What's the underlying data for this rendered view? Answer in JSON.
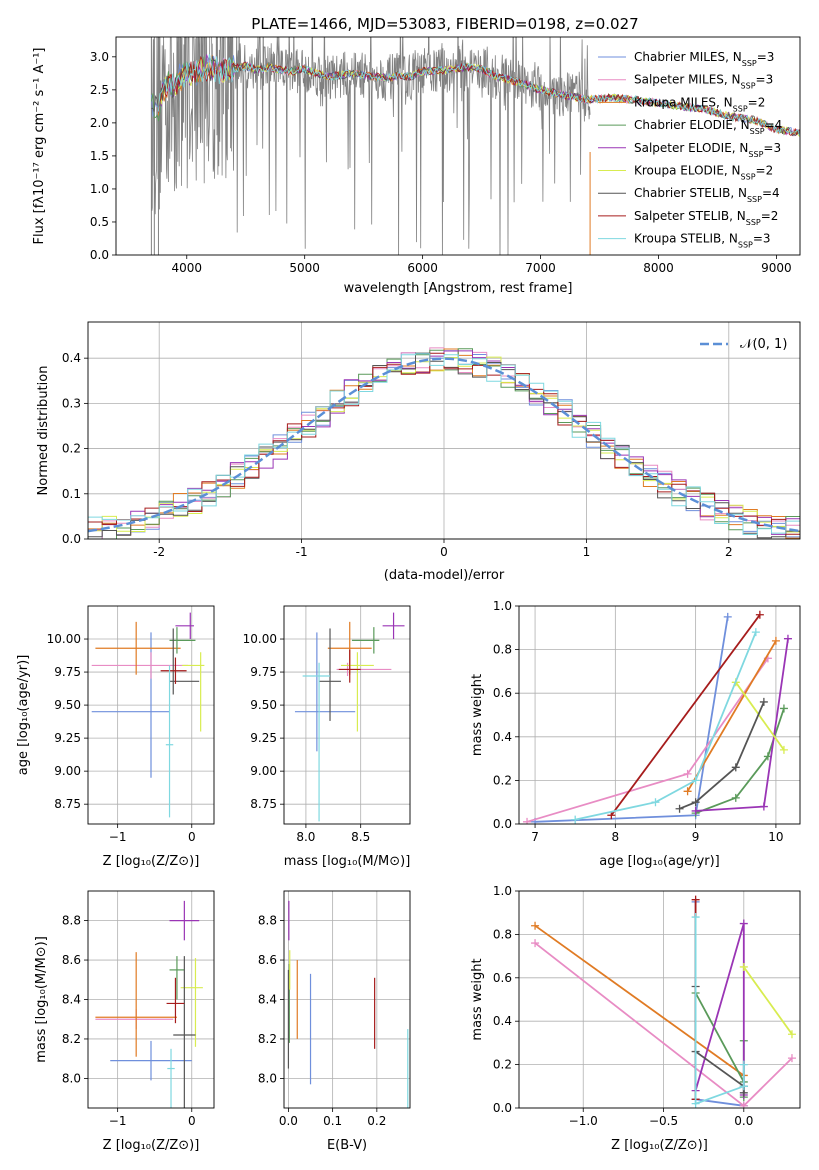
{
  "figure_title": "PLATE=1466, MJD=53083, FIBERID=0198, z=0.027",
  "colors": {
    "gray_spectrum": "#808080",
    "grid": "#b0b0b0"
  },
  "legend_series": [
    {
      "label": "Chabrier MILES, N",
      "sub": "SSP",
      "post": "=3",
      "color": "#6f8fdc"
    },
    {
      "label": "Salpeter MILES, N",
      "sub": "SSP",
      "post": "=3",
      "color": "#e88cc4"
    },
    {
      "label": "Kroupa MILES, N",
      "sub": "SSP",
      "post": "=2",
      "color": "#e07b24"
    },
    {
      "label": "Chabrier ELODIE, N",
      "sub": "SSP",
      "post": "=4",
      "color": "#5a9a5a"
    },
    {
      "label": "Salpeter ELODIE, N",
      "sub": "SSP",
      "post": "=3",
      "color": "#9a35b5"
    },
    {
      "label": "Kroupa ELODIE, N",
      "sub": "SSP",
      "post": "=2",
      "color": "#d8ec50"
    },
    {
      "label": "Chabrier STELIB, N",
      "sub": "SSP",
      "post": "=4",
      "color": "#555555"
    },
    {
      "label": "Salpeter STELIB, N",
      "sub": "SSP",
      "post": "=2",
      "color": "#a61c1c"
    },
    {
      "label": "Kroupa STELIB, N",
      "sub": "SSP",
      "post": "=3",
      "color": "#7fd8e0"
    }
  ],
  "chart_data": [
    {
      "id": "spectrum",
      "type": "line",
      "title": "PLATE=1466, MJD=53083, FIBERID=0198, z=0.027",
      "xlabel": "wavelength [Angstrom, rest frame]",
      "ylabel": "Flux [fλ10⁻¹⁷ erg cm⁻² s⁻¹ A⁻¹]",
      "xlim": [
        3400,
        9200
      ],
      "ylim": [
        0,
        3.3
      ],
      "xticks": [
        4000,
        5000,
        6000,
        7000,
        8000,
        9000
      ],
      "yticks": [
        0.0,
        0.5,
        1.0,
        1.5,
        2.0,
        2.5,
        3.0
      ],
      "data_extent": [
        3700,
        7420
      ],
      "model_curve": {
        "x": [
          3700,
          3760,
          3800,
          3850,
          3900,
          3950,
          4000,
          4100,
          4200,
          4300,
          4400,
          4500,
          4600,
          4700,
          4800,
          4900,
          5000,
          5100,
          5200,
          5300,
          5400,
          5500,
          5600,
          5700,
          5800,
          5900,
          6000,
          6200,
          6400,
          6500,
          6600,
          6800,
          7000,
          7200,
          7400,
          7600,
          7800,
          8000,
          8200,
          8400,
          8600,
          8800,
          9000,
          9200
        ],
        "y": [
          2.3,
          2.2,
          2.5,
          2.6,
          2.55,
          2.7,
          2.75,
          2.8,
          2.85,
          2.78,
          2.82,
          2.86,
          2.8,
          2.84,
          2.8,
          2.78,
          2.82,
          2.75,
          2.7,
          2.72,
          2.75,
          2.72,
          2.7,
          2.68,
          2.72,
          2.7,
          2.78,
          2.8,
          2.85,
          2.82,
          2.72,
          2.62,
          2.5,
          2.42,
          2.35,
          2.38,
          2.35,
          2.3,
          2.25,
          2.2,
          2.1,
          2.05,
          1.9,
          1.85
        ]
      }
    },
    {
      "id": "residuals",
      "type": "histogram",
      "xlabel": "(data-model)/error",
      "ylabel": "Normed distribution",
      "xlim": [
        -2.5,
        2.5
      ],
      "ylim": [
        0,
        0.48
      ],
      "xticks": [
        -2,
        -1,
        0,
        1,
        2
      ],
      "yticks": [
        0.0,
        0.1,
        0.2,
        0.3,
        0.4
      ],
      "legend": "𝒩(0, 1)",
      "legend_color": "#5b8fd6",
      "bin_width": 0.1,
      "bin_start": -2.5
    },
    {
      "id": "age_vs_Z",
      "type": "errorbar",
      "xlabel": "Z [log₁₀(Z/Z⊙)]",
      "ylabel": "age  [log₁₀(age/yr)]",
      "xlim": [
        -1.4,
        0.3
      ],
      "ylim": [
        8.6,
        10.25
      ],
      "xticks": [
        -1,
        0
      ],
      "xtick_labels": [
        "−1",
        "0"
      ],
      "yticks": [
        8.75,
        9.0,
        9.25,
        9.5,
        9.75,
        10.0
      ],
      "ytick_labels": [
        "8.75",
        "9.00",
        "9.25",
        "9.50",
        "9.75",
        "10.00"
      ],
      "points": [
        {
          "x": -0.55,
          "y": 9.45,
          "xerr": [
            0.8,
            0.25
          ],
          "yerr": [
            0.5,
            0.6
          ],
          "color": "#6f8fdc"
        },
        {
          "x": -0.55,
          "y": 9.8,
          "xerr": [
            0.8,
            0.5
          ],
          "yerr": [
            0.1,
            0.1
          ],
          "color": "#e88cc4"
        },
        {
          "x": -0.75,
          "y": 9.93,
          "xerr": [
            0.55,
            0.6
          ],
          "yerr": [
            0.2,
            0.2
          ],
          "color": "#e07b24"
        },
        {
          "x": -0.2,
          "y": 9.99,
          "xerr": [
            0.1,
            0.25
          ],
          "yerr": [
            0.1,
            0.1
          ],
          "color": "#5a9a5a"
        },
        {
          "x": -0.02,
          "y": 10.1,
          "xerr": [
            0.2,
            0.05
          ],
          "yerr": [
            0.1,
            0.1
          ],
          "color": "#9a35b5"
        },
        {
          "x": 0.12,
          "y": 9.8,
          "xerr": [
            0.25,
            0.05
          ],
          "yerr": [
            0.5,
            0.1
          ],
          "color": "#d8ec50"
        },
        {
          "x": -0.25,
          "y": 9.68,
          "xerr": [
            0.05,
            0.35
          ],
          "yerr": [
            0.1,
            0.4
          ],
          "color": "#555555"
        },
        {
          "x": -0.22,
          "y": 9.76,
          "xerr": [
            0.2,
            0.15
          ],
          "yerr": [
            0.1,
            0.1
          ],
          "color": "#a61c1c"
        },
        {
          "x": -0.3,
          "y": 9.2,
          "xerr": [
            0.05,
            0.05
          ],
          "yerr": [
            0.55,
            0.6
          ],
          "color": "#7fd8e0"
        }
      ]
    },
    {
      "id": "age_vs_mass",
      "type": "errorbar",
      "xlabel": "mass [log₁₀(M/M⊙)]",
      "ylabel": "",
      "xlim": [
        7.8,
        8.95
      ],
      "ylim": [
        8.6,
        10.25
      ],
      "xticks": [
        8.0,
        8.5
      ],
      "xtick_labels": [
        "8.0",
        "8.5"
      ],
      "yticks": [
        8.75,
        9.0,
        9.25,
        9.5,
        9.75,
        10.0
      ],
      "ytick_labels": [
        "8.75",
        "9.00",
        "9.25",
        "9.50",
        "9.75",
        "10.00"
      ],
      "points": [
        {
          "x": 8.1,
          "y": 9.45,
          "xerr": [
            0.2,
            0.35
          ],
          "yerr": [
            0.3,
            0.6
          ],
          "color": "#6f8fdc"
        },
        {
          "x": 8.38,
          "y": 9.77,
          "xerr": [
            0.1,
            0.4
          ],
          "yerr": [
            0.05,
            0.05
          ],
          "color": "#e88cc4"
        },
        {
          "x": 8.4,
          "y": 9.93,
          "xerr": [
            0.2,
            0.2
          ],
          "yerr": [
            0.2,
            0.2
          ],
          "color": "#e07b24"
        },
        {
          "x": 8.62,
          "y": 9.99,
          "xerr": [
            0.2,
            0.05
          ],
          "yerr": [
            0.1,
            0.1
          ],
          "color": "#5a9a5a"
        },
        {
          "x": 8.8,
          "y": 10.1,
          "xerr": [
            0.1,
            0.1
          ],
          "yerr": [
            0.1,
            0.1
          ],
          "color": "#9a35b5"
        },
        {
          "x": 8.47,
          "y": 9.8,
          "xerr": [
            0.15,
            0.15
          ],
          "yerr": [
            0.5,
            0.1
          ],
          "color": "#d8ec50"
        },
        {
          "x": 8.22,
          "y": 9.68,
          "xerr": [
            0.1,
            0.1
          ],
          "yerr": [
            0.3,
            0.4
          ],
          "color": "#555555"
        },
        {
          "x": 8.4,
          "y": 9.77,
          "xerr": [
            0.1,
            0.1
          ],
          "yerr": [
            0.1,
            0.15
          ],
          "color": "#a61c1c"
        },
        {
          "x": 8.12,
          "y": 9.72,
          "xerr": [
            0.15,
            0.1
          ],
          "yerr": [
            1.1,
            0.1
          ],
          "color": "#7fd8e0"
        }
      ]
    },
    {
      "id": "mass_weight_vs_age",
      "type": "line",
      "xlabel": "age  [log₁₀(age/yr)]",
      "ylabel": "mass weight",
      "xlim": [
        6.8,
        10.3
      ],
      "ylim": [
        0,
        1.0
      ],
      "xticks": [
        7,
        8,
        9,
        10
      ],
      "yticks": [
        0.0,
        0.2,
        0.4,
        0.6,
        0.8,
        1.0
      ],
      "series": [
        {
          "color": "#6f8fdc",
          "x": [
            7.0,
            9.0,
            9.4
          ],
          "y": [
            0.01,
            0.04,
            0.95
          ]
        },
        {
          "color": "#e88cc4",
          "x": [
            6.9,
            8.9,
            9.9
          ],
          "y": [
            0.01,
            0.23,
            0.76
          ]
        },
        {
          "color": "#e07b24",
          "x": [
            8.9,
            10.0
          ],
          "y": [
            0.15,
            0.84
          ]
        },
        {
          "color": "#5a9a5a",
          "x": [
            9.0,
            9.5,
            9.9,
            10.1
          ],
          "y": [
            0.05,
            0.12,
            0.31,
            0.53
          ]
        },
        {
          "color": "#9a35b5",
          "x": [
            9.0,
            9.85,
            10.15
          ],
          "y": [
            0.06,
            0.08,
            0.85
          ]
        },
        {
          "color": "#d8ec50",
          "x": [
            9.5,
            10.1
          ],
          "y": [
            0.65,
            0.34
          ]
        },
        {
          "color": "#555555",
          "x": [
            8.8,
            9.0,
            9.5,
            9.85
          ],
          "y": [
            0.07,
            0.1,
            0.26,
            0.56
          ]
        },
        {
          "color": "#a61c1c",
          "x": [
            7.95,
            9.8
          ],
          "y": [
            0.04,
            0.96
          ]
        },
        {
          "color": "#7fd8e0",
          "x": [
            7.5,
            8.5,
            9.0,
            9.75
          ],
          "y": [
            0.02,
            0.1,
            0.2,
            0.88
          ]
        }
      ]
    },
    {
      "id": "mass_vs_Z",
      "type": "errorbar",
      "xlabel": "Z [log₁₀(Z/Z⊙)]",
      "ylabel": "mass [log₁₀(M/M⊙)]",
      "xlim": [
        -1.4,
        0.3
      ],
      "ylim": [
        7.85,
        8.95
      ],
      "xticks": [
        -1,
        0
      ],
      "xtick_labels": [
        "−1",
        "0"
      ],
      "yticks": [
        8.0,
        8.2,
        8.4,
        8.6,
        8.8
      ],
      "ytick_labels": [
        "8.0",
        "8.2",
        "8.4",
        "8.6",
        "8.8"
      ],
      "points": [
        {
          "x": -0.55,
          "y": 8.09,
          "xerr": [
            0.55,
            0.55
          ],
          "yerr": [
            0.1,
            0.1
          ],
          "color": "#6f8fdc"
        },
        {
          "x": -0.75,
          "y": 8.3,
          "xerr": [
            0.55,
            0.5
          ],
          "yerr": [
            0.05,
            0.05
          ],
          "color": "#e88cc4"
        },
        {
          "x": -0.75,
          "y": 8.31,
          "xerr": [
            0.55,
            0.55
          ],
          "yerr": [
            0.2,
            0.33
          ],
          "color": "#e07b24"
        },
        {
          "x": -0.2,
          "y": 8.55,
          "xerr": [
            0.1,
            0.1
          ],
          "yerr": [
            0.15,
            0.07
          ],
          "color": "#5a9a5a"
        },
        {
          "x": -0.1,
          "y": 8.8,
          "xerr": [
            0.2,
            0.2
          ],
          "yerr": [
            0.1,
            0.1
          ],
          "color": "#9a35b5"
        },
        {
          "x": 0.05,
          "y": 8.46,
          "xerr": [
            0.2,
            0.1
          ],
          "yerr": [
            0.3,
            0.15
          ],
          "color": "#d8ec50"
        },
        {
          "x": -0.1,
          "y": 8.22,
          "xerr": [
            0.15,
            0.15
          ],
          "yerr": [
            0.4,
            0.4
          ],
          "color": "#555555"
        },
        {
          "x": -0.22,
          "y": 8.38,
          "xerr": [
            0.12,
            0.12
          ],
          "yerr": [
            0.1,
            0.13
          ],
          "color": "#a61c1c"
        },
        {
          "x": -0.28,
          "y": 8.05,
          "xerr": [
            0.05,
            0.05
          ],
          "yerr": [
            0.2,
            0.1
          ],
          "color": "#7fd8e0"
        }
      ]
    },
    {
      "id": "mass_vs_EBV",
      "type": "errorbar",
      "xlabel": "E(B-V)",
      "ylabel": "",
      "xlim": [
        -0.01,
        0.275
      ],
      "ylim": [
        7.85,
        8.95
      ],
      "xticks": [
        0.0,
        0.1,
        0.2
      ],
      "xtick_labels": [
        "0.0",
        "0.1",
        "0.2"
      ],
      "yticks": [
        8.0,
        8.2,
        8.4,
        8.6,
        8.8
      ],
      "ytick_labels": [
        "8.0",
        "8.2",
        "8.4",
        "8.6",
        "8.8"
      ],
      "points": [
        {
          "x": 0.05,
          "y": 8.25,
          "xerr": [
            0,
            0
          ],
          "yerr": [
            0.28,
            0.28
          ],
          "color": "#6f8fdc"
        },
        {
          "x": 0.02,
          "y": 8.4,
          "xerr": [
            0,
            0
          ],
          "yerr": [
            0.2,
            0.2
          ],
          "color": "#e07b24"
        },
        {
          "x": 0.002,
          "y": 8.38,
          "xerr": [
            0,
            0
          ],
          "yerr": [
            0.2,
            0.2
          ],
          "color": "#5a9a5a"
        },
        {
          "x": 0.001,
          "y": 8.8,
          "xerr": [
            0,
            0
          ],
          "yerr": [
            0.1,
            0.1
          ],
          "color": "#9a35b5"
        },
        {
          "x": 0.003,
          "y": 8.55,
          "xerr": [
            0,
            0
          ],
          "yerr": [
            0.1,
            0.1
          ],
          "color": "#d8ec50"
        },
        {
          "x": 0.0,
          "y": 8.3,
          "xerr": [
            0,
            0
          ],
          "yerr": [
            0.25,
            0.25
          ],
          "color": "#555555"
        },
        {
          "x": 0.195,
          "y": 8.33,
          "xerr": [
            0,
            0
          ],
          "yerr": [
            0.18,
            0.18
          ],
          "color": "#a61c1c"
        },
        {
          "x": 0.27,
          "y": 8.05,
          "xerr": [
            0,
            0
          ],
          "yerr": [
            0.2,
            0.2
          ],
          "color": "#7fd8e0"
        }
      ]
    },
    {
      "id": "mass_weight_vs_Z",
      "type": "line",
      "xlabel": "Z [log₁₀(Z/Z⊙)]",
      "ylabel": "mass weight",
      "xlim": [
        -1.4,
        0.35
      ],
      "ylim": [
        0,
        1.0
      ],
      "xticks": [
        -1.0,
        -0.5,
        0.0
      ],
      "xtick_labels": [
        "−1.0",
        "−0.5",
        "0.0"
      ],
      "yticks": [
        0.0,
        0.2,
        0.4,
        0.6,
        0.8,
        1.0
      ],
      "series": [
        {
          "color": "#6f8fdc",
          "x": [
            -0.3,
            -0.3,
            0.0
          ],
          "y": [
            0.95,
            0.04,
            0.01
          ]
        },
        {
          "color": "#e88cc4",
          "x": [
            -1.3,
            0.0,
            0.3
          ],
          "y": [
            0.76,
            0.01,
            0.23
          ]
        },
        {
          "color": "#e07b24",
          "x": [
            -1.3,
            0.0
          ],
          "y": [
            0.84,
            0.15
          ]
        },
        {
          "color": "#5a9a5a",
          "x": [
            -0.3,
            0.0,
            0.0,
            0.0
          ],
          "y": [
            0.53,
            0.12,
            0.05,
            0.31
          ]
        },
        {
          "color": "#9a35b5",
          "x": [
            -0.3,
            0.0,
            0.0
          ],
          "y": [
            0.08,
            0.85,
            0.06
          ]
        },
        {
          "color": "#d8ec50",
          "x": [
            0.0,
            0.3
          ],
          "y": [
            0.65,
            0.34
          ]
        },
        {
          "color": "#555555",
          "x": [
            -0.3,
            -0.3,
            0.0,
            0.0
          ],
          "y": [
            0.56,
            0.26,
            0.1,
            0.07
          ]
        },
        {
          "color": "#a61c1c",
          "x": [
            -0.3,
            -0.3
          ],
          "y": [
            0.96,
            0.04
          ]
        },
        {
          "color": "#7fd8e0",
          "x": [
            -0.3,
            -0.3,
            0.0,
            0.0
          ],
          "y": [
            0.88,
            0.02,
            0.1,
            0.2
          ]
        }
      ]
    }
  ]
}
